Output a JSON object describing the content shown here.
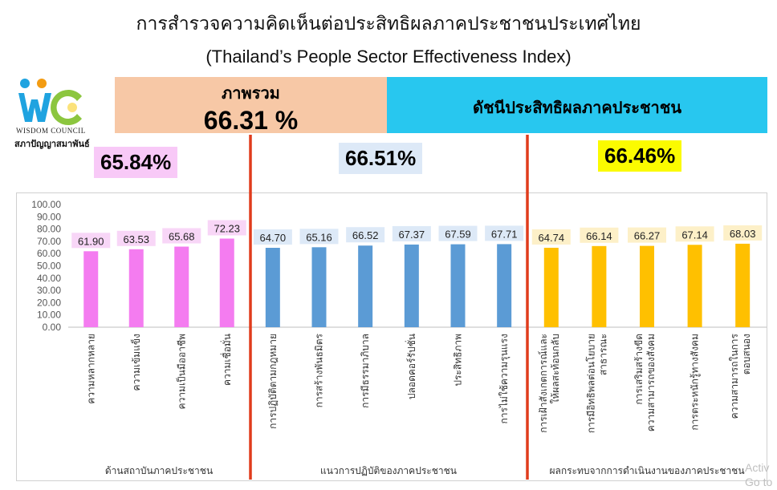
{
  "title_th": "การสำรวจความคิดเห็นต่อประสิทธิผลภาคประชาชนประเทศไทย",
  "title_en": "(Thailand’s People Sector Effectiveness Index)",
  "logo": {
    "text1": "WISDOM COUNCIL",
    "text2": "สภาปัญญาสมาพันธ์",
    "colors": [
      "#1fa3e0",
      "#f39c12",
      "#8cc63f"
    ]
  },
  "overall": {
    "label": "ภาพรวม",
    "value": "66.31 %"
  },
  "index_label": "ดัชนีประสิทธิผลภาคประชาชน",
  "group_badges": [
    "65.84%",
    "66.51%",
    "66.46%"
  ],
  "watermark": {
    "line1": "Activ",
    "line2": "Go to"
  },
  "chart_data": {
    "type": "bar",
    "ylim": [
      0,
      100
    ],
    "y_ticks": [
      "0.00",
      "10.00",
      "20.00",
      "30.00",
      "40.00",
      "50.00",
      "60.00",
      "70.00",
      "80.00",
      "90.00",
      "100.00"
    ],
    "grid": false,
    "groups": [
      {
        "name": "ด้านสถาบันภาคประชาชน",
        "color": "#f47cf0",
        "label_bg": "#f8d6f7",
        "categories": [
          "ความหลากหลาย",
          "ความเข้มแข็ง",
          "ความเป็นมืออาชีพ",
          "ความเชื่อมั่น"
        ],
        "values": [
          61.9,
          63.53,
          65.68,
          72.23
        ],
        "value_labels": [
          "61.90",
          "63.53",
          "65.68",
          "72.23"
        ]
      },
      {
        "name": "แนวการปฏิบัติของภาคประชาชน",
        "color": "#5b9bd5",
        "label_bg": "#dde9f7",
        "categories": [
          "การปฏิบัติตามกฎหมาย",
          "การสร้างพันธมิตร",
          "การมีธรรมาภิบาล",
          "ปลอดคอร์รัปชั่น",
          "ประสิทธิภาพ",
          "การไม่ใช้ความรุนแรง"
        ],
        "values": [
          64.7,
          65.16,
          66.52,
          67.37,
          67.59,
          67.71
        ],
        "value_labels": [
          "64.70",
          "65.16",
          "66.52",
          "67.37",
          "67.59",
          "67.71"
        ]
      },
      {
        "name": "ผลกระทบจากการดำเนินงานของภาคประชาชน",
        "color": "#ffc000",
        "label_bg": "#fdf0c8",
        "categories": [
          "การเฝ้าสังเกตการณ์และให้ผลสะท้อนกลับ",
          "การมีอิทธิพลต่อนโยบายสาธารณะ",
          "การเสริมสร้างขีดความสามารถของสังคม",
          "การตระหนักรู้ทางสังคม",
          "ความสามารถในการตอบสนอง"
        ],
        "category_lines": [
          [
            "การเฝ้าสังเกตการณ์และ",
            "ให้ผลสะท้อนกลับ"
          ],
          [
            "การมีอิทธิพลต่อนโยบาย",
            "สาธารณะ"
          ],
          [
            "การเสริมสร้างขีด",
            "ความสามารถของสังคม"
          ],
          [
            "การตระหนักรู้ทางสังคม"
          ],
          [
            "ความสามารถในการ",
            "ตอบสนอง"
          ]
        ],
        "values": [
          64.74,
          66.14,
          66.27,
          67.14,
          68.03
        ],
        "value_labels": [
          "64.74",
          "66.14",
          "66.27",
          "67.14",
          "68.03"
        ]
      }
    ],
    "divider_color": "#e03c1c"
  }
}
